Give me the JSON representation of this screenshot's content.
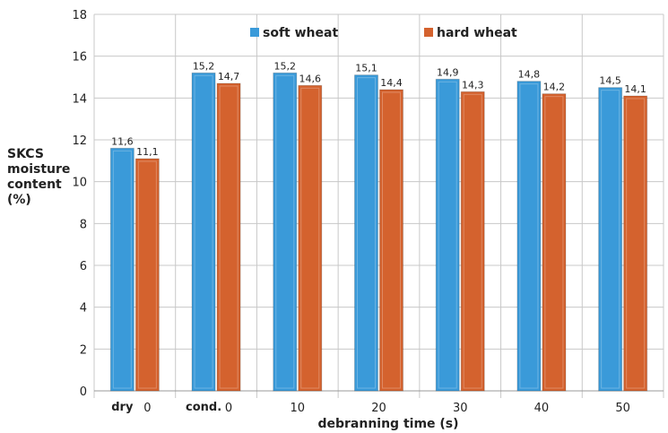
{
  "chart_data": {
    "type": "bar",
    "categories": [
      {
        "label": "dry",
        "sub": "0"
      },
      {
        "label": "cond.",
        "sub": "0"
      },
      {
        "label": "",
        "sub": "10"
      },
      {
        "label": "",
        "sub": "20"
      },
      {
        "label": "",
        "sub": "30"
      },
      {
        "label": "",
        "sub": "40"
      },
      {
        "label": "",
        "sub": "50"
      }
    ],
    "series": [
      {
        "name": "soft wheat",
        "color": "#3a9ad9",
        "values": [
          11.6,
          15.2,
          15.2,
          15.1,
          14.9,
          14.8,
          14.5
        ],
        "labels": [
          "11,6",
          "15,2",
          "15,2",
          "15,1",
          "14,9",
          "14,8",
          "14,5"
        ]
      },
      {
        "name": "hard wheat",
        "color": "#d4622e",
        "values": [
          11.1,
          14.7,
          14.6,
          14.4,
          14.3,
          14.2,
          14.1
        ],
        "labels": [
          "11,1",
          "14,7",
          "14,6",
          "14,4",
          "14,3",
          "14,2",
          "14,1"
        ]
      }
    ],
    "ylabel_lines": [
      "SKCS",
      "moisture",
      "content",
      "(%)"
    ],
    "xlabel": "debranning time (s)",
    "ylim": [
      0,
      18
    ],
    "yticks": [
      0,
      2,
      4,
      6,
      8,
      10,
      12,
      14,
      16,
      18
    ],
    "grid": "horizontal",
    "legend": "top"
  }
}
